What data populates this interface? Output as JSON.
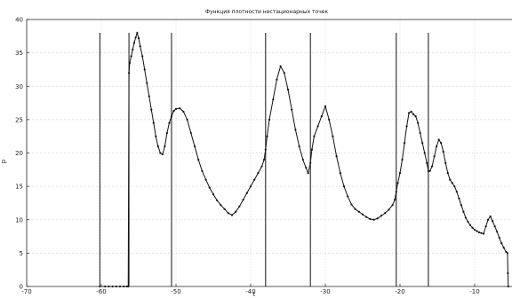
{
  "chart_data": {
    "type": "line",
    "title": "Функция плотности нестационарных точек",
    "xlabel": "t",
    "ylabel": "p",
    "xlim": [
      -70,
      -5
    ],
    "ylim": [
      0,
      40
    ],
    "xticks": [
      -70,
      -60,
      -50,
      -40,
      -30,
      -20,
      -10
    ],
    "yticks": [
      0,
      5,
      10,
      15,
      20,
      25,
      30,
      35,
      40
    ],
    "grid": true,
    "vertical_lines": [
      -60.2,
      -56.3,
      -50.6,
      -38.0,
      -32.0,
      -20.5,
      -16.2
    ],
    "vertical_line_top": 38,
    "series": [
      {
        "x": [
          -60.2,
          -59.5,
          -59,
          -58.5,
          -58,
          -57.5,
          -57,
          -56.6,
          -56.4,
          -56.3,
          -56.2,
          -56.0,
          -55.8,
          -55.6,
          -55.4,
          -55.2,
          -55.0,
          -54.8,
          -54.5,
          -54.2,
          -53.9,
          -53.6,
          -53.3,
          -53.0,
          -52.7,
          -52.4,
          -52.1,
          -51.8,
          -51.5,
          -51.2,
          -50.9,
          -50.6,
          -50.3,
          -50.0,
          -49.5,
          -49.0,
          -48.5,
          -48.0,
          -47.5,
          -47.0,
          -46.5,
          -46.0,
          -45.5,
          -45.0,
          -44.5,
          -44.0,
          -43.5,
          -43.0,
          -42.5,
          -42.0,
          -41.5,
          -41.0,
          -40.5,
          -40.0,
          -39.5,
          -39.0,
          -38.5,
          -38.2,
          -38.0,
          -37.8,
          -37.5,
          -37.0,
          -36.5,
          -36.0,
          -35.5,
          -35.0,
          -34.5,
          -34.0,
          -33.5,
          -33.0,
          -32.6,
          -32.3,
          -32.0,
          -31.8,
          -31.5,
          -31.0,
          -30.5,
          -30.0,
          -29.5,
          -29.0,
          -28.5,
          -28.0,
          -27.5,
          -27.0,
          -26.5,
          -26.0,
          -25.5,
          -25.0,
          -24.5,
          -24.0,
          -23.5,
          -23.0,
          -22.5,
          -22.0,
          -21.5,
          -21.0,
          -20.7,
          -20.5,
          -20.3,
          -20.0,
          -19.7,
          -19.4,
          -19.1,
          -18.8,
          -18.5,
          -18.2,
          -17.9,
          -17.6,
          -17.3,
          -17.0,
          -16.7,
          -16.4,
          -16.2,
          -16.0,
          -15.7,
          -15.4,
          -15.1,
          -14.8,
          -14.5,
          -14.2,
          -13.9,
          -13.6,
          -13.3,
          -13.0,
          -12.7,
          -12.4,
          -12.1,
          -11.8,
          -11.5,
          -11.2,
          -10.9,
          -10.6,
          -10.3,
          -10.0,
          -9.7,
          -9.4,
          -9.1,
          -8.8,
          -8.5,
          -8.2,
          -7.9,
          -7.6,
          -7.3,
          -7.0,
          -6.7,
          -6.4,
          -6.1,
          -5.8,
          -5.6,
          -5.55,
          -5.5
        ],
        "y": [
          0,
          0,
          0,
          0,
          0,
          0,
          0,
          0,
          0,
          32,
          33.5,
          34.5,
          35.5,
          36.5,
          37.3,
          38.0,
          37.2,
          36.0,
          34.5,
          32.5,
          30.5,
          28.5,
          26.5,
          24.5,
          22.5,
          21.0,
          20.0,
          19.8,
          21.0,
          23.0,
          24.5,
          25.5,
          26.3,
          26.6,
          26.7,
          26.2,
          25.0,
          23.0,
          21.0,
          19.0,
          17.3,
          16.0,
          14.8,
          13.8,
          12.9,
          12.2,
          11.6,
          11.0,
          10.7,
          11.2,
          12.0,
          13.0,
          14.0,
          15.0,
          16.0,
          17.0,
          18.0,
          19.0,
          20.5,
          22.5,
          25.0,
          28.0,
          31.0,
          33.0,
          32.0,
          29.5,
          26.5,
          23.5,
          21.0,
          19.0,
          17.8,
          17.0,
          18.5,
          20.5,
          22.5,
          24.0,
          25.5,
          27.0,
          25.0,
          22.5,
          19.5,
          17.0,
          15.0,
          13.5,
          12.3,
          11.6,
          11.2,
          10.8,
          10.4,
          10.1,
          10.0,
          10.2,
          10.6,
          11.0,
          11.5,
          12.2,
          13.0,
          14.2,
          15.5,
          17.0,
          19.0,
          21.5,
          24.0,
          26.0,
          26.2,
          25.8,
          25.5,
          24.5,
          23.0,
          21.5,
          20.0,
          18.5,
          17.3,
          17.3,
          18.0,
          19.5,
          21.0,
          22.0,
          21.5,
          20.2,
          18.5,
          17.0,
          16.0,
          15.5,
          15.0,
          14.2,
          13.2,
          12.2,
          11.2,
          10.3,
          9.7,
          9.2,
          8.8,
          8.5,
          8.3,
          8.1,
          8.0,
          7.9,
          9.0,
          10.0,
          10.5,
          9.8,
          9.0,
          8.2,
          7.3,
          6.5,
          5.8,
          5.2,
          5.0,
          2.0,
          0
        ]
      }
    ]
  }
}
